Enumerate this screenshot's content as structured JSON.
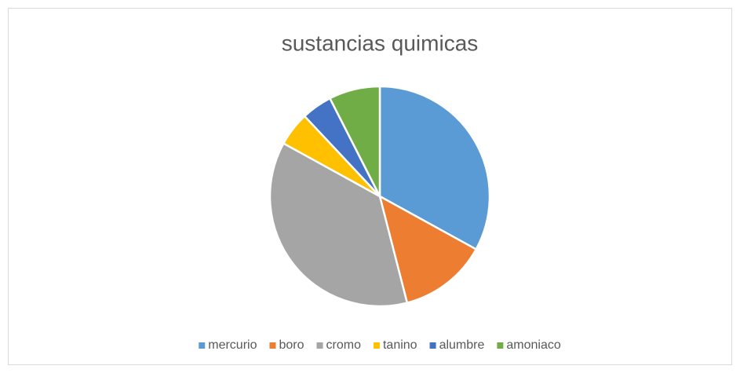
{
  "chart_data": {
    "type": "pie",
    "title": "sustancias quimicas",
    "categories": [
      "mercurio",
      "boro",
      "cromo",
      "tanino",
      "alumbre",
      "amoniaco"
    ],
    "values": [
      33,
      13,
      37,
      5,
      4.5,
      7.5
    ],
    "colors": [
      "#5b9bd5",
      "#ed7d31",
      "#a5a5a5",
      "#ffc000",
      "#4472c4",
      "#70ad47"
    ],
    "legend": "bottom"
  }
}
